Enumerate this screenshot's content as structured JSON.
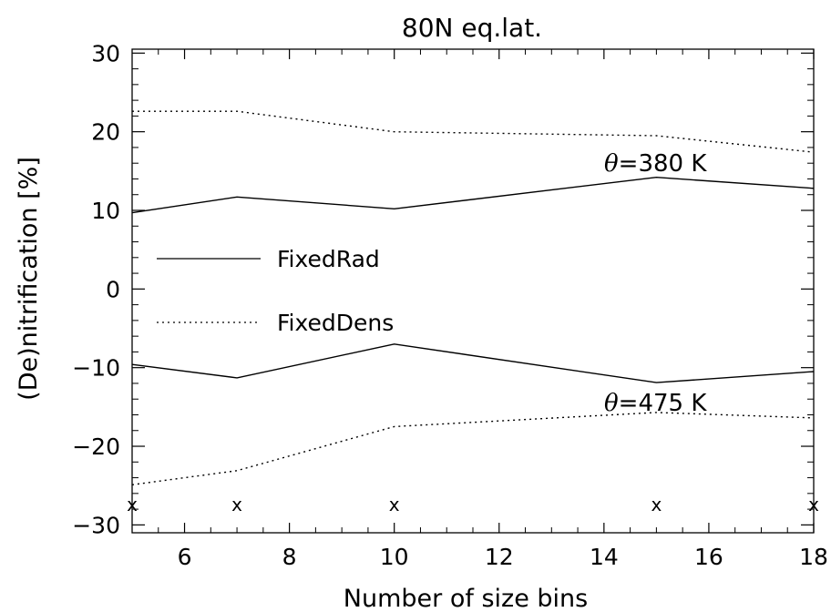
{
  "chart_data": {
    "type": "line",
    "title": "80N eq.lat.",
    "xlabel": "Number of size bins",
    "ylabel": "(De)nitrification [%]",
    "xlim": [
      5,
      18
    ],
    "ylim": [
      -31,
      30.5
    ],
    "xticks": [
      6,
      8,
      10,
      12,
      14,
      16,
      18
    ],
    "yticks": [
      -30,
      -20,
      -10,
      0,
      10,
      20,
      30
    ],
    "x": [
      5,
      7,
      10,
      15,
      18
    ],
    "series": [
      {
        "name": "FixedRad",
        "style": "solid",
        "level": "380",
        "values": [
          9.7,
          11.7,
          10.2,
          14.2,
          12.8
        ]
      },
      {
        "name": "FixedDens",
        "style": "dotted",
        "level": "380",
        "values": [
          22.6,
          22.6,
          20.0,
          19.5,
          17.4
        ]
      },
      {
        "name": "FixedRad",
        "style": "solid",
        "level": "475",
        "values": [
          -9.6,
          -11.3,
          -7.0,
          -11.9,
          -10.5
        ]
      },
      {
        "name": "FixedDens",
        "style": "dotted",
        "level": "475",
        "values": [
          -24.9,
          -23.1,
          -17.5,
          -15.7,
          -16.4
        ]
      }
    ],
    "markers": {
      "symbol": "x",
      "x": [
        5,
        7,
        10,
        15,
        18
      ],
      "y": [
        -27.5,
        -27.5,
        -27.5,
        -27.5,
        -27.5
      ]
    },
    "annotations": [
      {
        "symbol": "θ",
        "text": "=380 K"
      },
      {
        "symbol": "θ",
        "text": "=475 K"
      }
    ],
    "legend": {
      "placement": "left-middle",
      "entries": [
        "FixedRad",
        "FixedDens"
      ]
    },
    "grid": false,
    "colors": {
      "line": "#000000",
      "background": "#ffffff"
    }
  }
}
